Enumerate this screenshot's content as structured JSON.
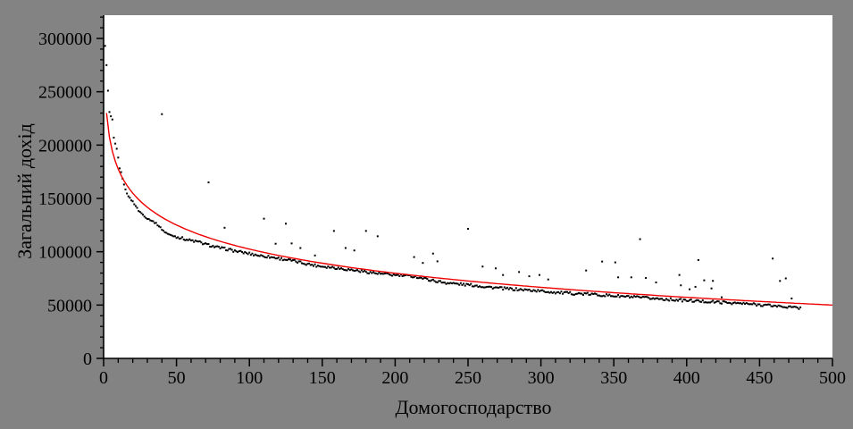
{
  "colors": {
    "background": "#838383",
    "plot_background": "#ffffff",
    "axis": "#000000",
    "points": "#000000",
    "trend": "#ee0000"
  },
  "chart_data": {
    "type": "scatter",
    "title": "",
    "xlabel": "Домогосподарство",
    "ylabel": "Загальний дохід",
    "xlim": [
      0,
      500
    ],
    "ylim": [
      0,
      321000
    ],
    "grid": false,
    "legend": false,
    "x_ticks": [
      0,
      50,
      100,
      150,
      200,
      250,
      300,
      350,
      400,
      450,
      500
    ],
    "x_tick_labels": [
      "0",
      "50",
      "100",
      "150",
      "200",
      "250",
      "300",
      "350",
      "400",
      "450",
      "500"
    ],
    "x_minor_tick_step": 10,
    "y_ticks": [
      0,
      50000,
      100000,
      150000,
      200000,
      250000,
      300000
    ],
    "y_tick_labels": [
      "0",
      "50000",
      "100000",
      "150000",
      "200000",
      "250000",
      "300000"
    ],
    "y_minor_tick_step": 10000,
    "y_minor_tick_max": 320000,
    "series": [
      {
        "name": "households-income-points",
        "type": "scatter",
        "color": "#000000",
        "x_range": [
          1,
          478
        ],
        "band_anchors": [
          [
            1,
            293000
          ],
          [
            2,
            275000
          ],
          [
            3,
            251000
          ],
          [
            4,
            231000
          ],
          [
            5,
            227000
          ],
          [
            6,
            224000
          ],
          [
            7,
            207000
          ],
          [
            8,
            201000
          ],
          [
            9,
            196000
          ],
          [
            10,
            188000
          ],
          [
            11,
            178000
          ],
          [
            12,
            175000
          ],
          [
            13,
            168000
          ],
          [
            14,
            163500
          ],
          [
            15,
            158000
          ],
          [
            16,
            155000
          ],
          [
            17,
            152500
          ],
          [
            18,
            150000
          ],
          [
            20,
            147000
          ],
          [
            22,
            143000
          ],
          [
            24,
            138500
          ],
          [
            26,
            136000
          ],
          [
            28,
            133500
          ],
          [
            30,
            131000
          ],
          [
            32,
            130000
          ],
          [
            34,
            128300
          ],
          [
            36,
            126500
          ],
          [
            38,
            124000
          ],
          [
            40,
            121000
          ],
          [
            42,
            118500
          ],
          [
            45,
            116000
          ],
          [
            50,
            114000
          ],
          [
            53,
            113000
          ],
          [
            58,
            111000
          ],
          [
            62,
            110000
          ],
          [
            66,
            108800
          ],
          [
            70,
            107000
          ],
          [
            76,
            104800
          ],
          [
            80,
            103500
          ],
          [
            86,
            102000
          ],
          [
            90,
            100700
          ],
          [
            96,
            99200
          ],
          [
            100,
            98200
          ],
          [
            107,
            96400
          ],
          [
            112,
            95500
          ],
          [
            117,
            94500
          ],
          [
            122,
            93300
          ],
          [
            127,
            92200
          ],
          [
            132,
            90800
          ],
          [
            137,
            89400
          ],
          [
            142,
            88000
          ],
          [
            148,
            86600
          ],
          [
            153,
            85900
          ],
          [
            158,
            85200
          ],
          [
            163,
            84200
          ],
          [
            168,
            83300
          ],
          [
            173,
            82400
          ],
          [
            178,
            81600
          ],
          [
            183,
            80600
          ],
          [
            188,
            79600
          ],
          [
            194,
            78800
          ],
          [
            200,
            78000
          ],
          [
            207,
            77400
          ],
          [
            213,
            76900
          ],
          [
            220,
            74800
          ],
          [
            226,
            73000
          ],
          [
            233,
            71200
          ],
          [
            240,
            70200
          ],
          [
            247,
            69300
          ],
          [
            254,
            68500
          ],
          [
            260,
            67500
          ],
          [
            267,
            66500
          ],
          [
            274,
            65600
          ],
          [
            281,
            64900
          ],
          [
            288,
            64300
          ],
          [
            295,
            63700
          ],
          [
            302,
            62900
          ],
          [
            308,
            62100
          ],
          [
            315,
            61400
          ],
          [
            322,
            60900
          ],
          [
            328,
            60500
          ],
          [
            335,
            60100
          ],
          [
            342,
            59400
          ],
          [
            349,
            58700
          ],
          [
            356,
            58100
          ],
          [
            362,
            57500
          ],
          [
            368,
            57000
          ],
          [
            375,
            56400
          ],
          [
            382,
            55800
          ],
          [
            390,
            55100
          ],
          [
            398,
            54400
          ],
          [
            406,
            53800
          ],
          [
            414,
            53200
          ],
          [
            422,
            52700
          ],
          [
            430,
            52100
          ],
          [
            438,
            51400
          ],
          [
            446,
            50700
          ],
          [
            454,
            50000
          ],
          [
            460,
            49300
          ],
          [
            466,
            48600
          ],
          [
            470,
            48200
          ],
          [
            474,
            47600
          ],
          [
            478,
            47200
          ]
        ],
        "outliers": [
          [
            40,
            229000
          ],
          [
            72,
            165000
          ],
          [
            83,
            122500
          ],
          [
            110,
            131000
          ],
          [
            118,
            107500
          ],
          [
            125,
            126300
          ],
          [
            129,
            107800
          ],
          [
            135,
            103500
          ],
          [
            145,
            96500
          ],
          [
            158,
            119500
          ],
          [
            166,
            103500
          ],
          [
            172,
            101200
          ],
          [
            180,
            119500
          ],
          [
            188,
            114500
          ],
          [
            213,
            95000
          ],
          [
            219,
            89500
          ],
          [
            226,
            98300
          ],
          [
            229,
            91000
          ],
          [
            250,
            121500
          ],
          [
            260,
            86100
          ],
          [
            269,
            84400
          ],
          [
            274,
            78200
          ],
          [
            285,
            81000
          ],
          [
            292,
            77000
          ],
          [
            299,
            78200
          ],
          [
            305,
            74000
          ],
          [
            331,
            82400
          ],
          [
            342,
            90800
          ],
          [
            351,
            90000
          ],
          [
            353,
            76000
          ],
          [
            362,
            76000
          ],
          [
            368,
            111800
          ],
          [
            372,
            75400
          ],
          [
            379,
            71200
          ],
          [
            395,
            78200
          ],
          [
            396,
            68500
          ],
          [
            402,
            64800
          ],
          [
            406,
            67100
          ],
          [
            408,
            92200
          ],
          [
            412,
            73200
          ],
          [
            417,
            65600
          ],
          [
            418,
            72700
          ],
          [
            424,
            57300
          ],
          [
            459,
            93600
          ],
          [
            464,
            72600
          ],
          [
            468,
            75000
          ],
          [
            472,
            56200
          ]
        ]
      },
      {
        "name": "logarithmic-trend",
        "type": "line",
        "color": "#ee0000",
        "formula": "y = 252600 - 32600*ln(x)",
        "a": 252600,
        "b": 32600,
        "x_range": [
          2,
          500
        ],
        "sample_points": [
          [
            2,
            230000
          ],
          [
            5,
            200100
          ],
          [
            10,
            177500
          ],
          [
            20,
            154900
          ],
          [
            50,
            125100
          ],
          [
            100,
            102500
          ],
          [
            150,
            89300
          ],
          [
            200,
            79900
          ],
          [
            250,
            72600
          ],
          [
            300,
            66700
          ],
          [
            350,
            61600
          ],
          [
            400,
            57300
          ],
          [
            450,
            53400
          ],
          [
            500,
            50000
          ]
        ]
      }
    ]
  }
}
